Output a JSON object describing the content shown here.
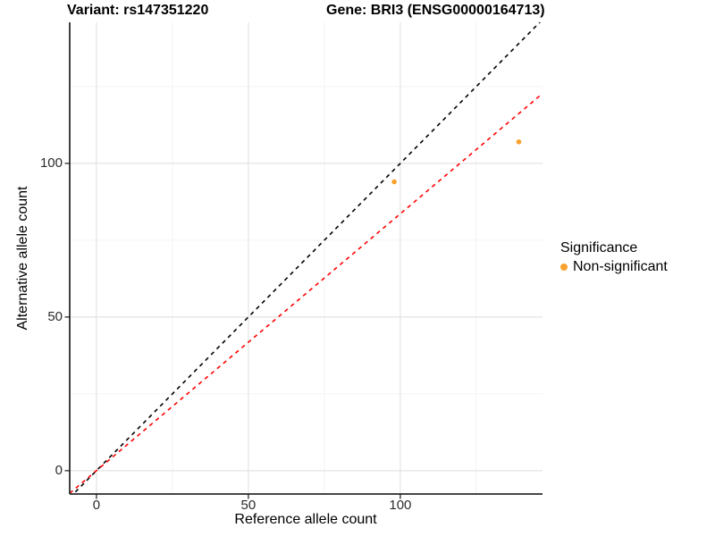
{
  "titles": {
    "variant": "Variant: rs147351220",
    "gene": "Gene: BRI3 (ENSG00000164713)"
  },
  "axes": {
    "x_label": "Reference allele count",
    "y_label": "Alternative allele count"
  },
  "legend": {
    "title": "Significance",
    "items": [
      {
        "label": "Non-significant",
        "color": "#F9A12E"
      }
    ]
  },
  "chart_data": {
    "type": "scatter",
    "title": "Variant: rs147351220 | Gene: BRI3 (ENSG00000164713)",
    "xlabel": "Reference allele count",
    "ylabel": "Alternative allele count",
    "points": [
      {
        "x": 98,
        "y": 94,
        "series": "Non-significant"
      },
      {
        "x": 139,
        "y": 107,
        "series": "Non-significant"
      }
    ],
    "point_color": "#F9A12E",
    "point_radius_px": 2.8,
    "xlim": [
      -8.8,
      146.8
    ],
    "ylim": [
      -7.6,
      145.9
    ],
    "x_major_ticks": [
      0,
      50,
      100
    ],
    "x_minor_ticks": [
      25,
      75,
      125
    ],
    "y_major_ticks": [
      0,
      50,
      100
    ],
    "y_minor_ticks": [
      25,
      75,
      125
    ],
    "lines": [
      {
        "name": "identity-line",
        "slope": 1,
        "intercept": 0,
        "color": "#000000",
        "dash": "dashed"
      },
      {
        "name": "expected-ratio-line",
        "slope": 0.836,
        "intercept": 0,
        "color": "#FF0000",
        "dash": "dashed"
      }
    ],
    "grid": true,
    "legend_position": "right"
  },
  "style": {
    "background": "#FFFFFF",
    "major_grid": "#E3E3E3",
    "minor_grid": "#F0F0F0",
    "axis_line": "#2B2B2B",
    "tick_color": "#1A1A1A",
    "text_color": "#000000"
  }
}
